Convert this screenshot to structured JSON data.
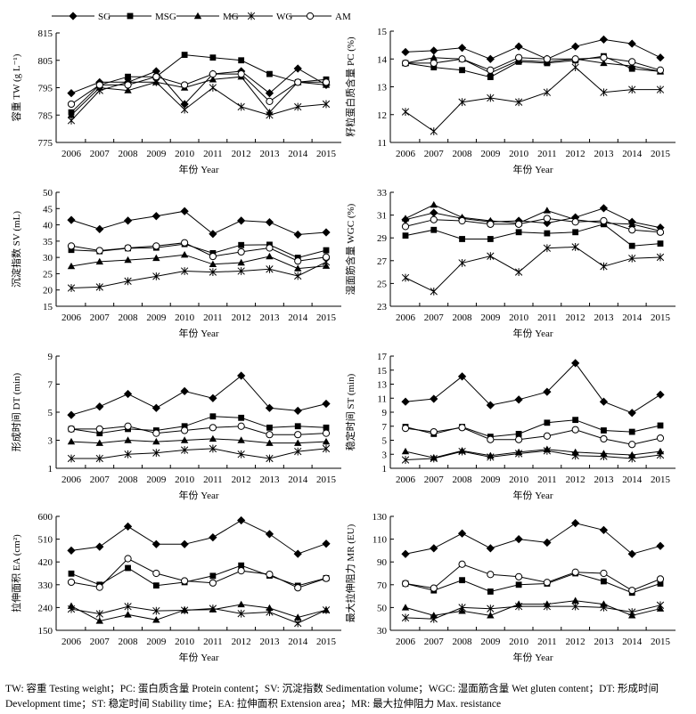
{
  "legend": [
    {
      "name": "SG",
      "marker": "diamond"
    },
    {
      "name": "MSG",
      "marker": "square"
    },
    {
      "name": "MG",
      "marker": "triangle"
    },
    {
      "name": "WG",
      "marker": "asterisk"
    },
    {
      "name": "AM",
      "marker": "circle"
    }
  ],
  "caption": "TW: 容重  Testing weight；PC: 蛋白质含量  Protein content；SV: 沉淀指数  Sedimentation volume；WGC: 湿面筋含量  Wet gluten content；DT: 形成时间  Development time；ST: 稳定时间  Stability time；EA: 拉伸面积  Extension area；MR: 最大拉伸阻力  Max. resistance",
  "chart_data": [
    {
      "type": "line",
      "id": "tw",
      "ylabel": "容重 TW (g L⁻¹)",
      "xlabel": "年份 Year",
      "ylim": [
        775,
        815
      ],
      "yticks": [
        775,
        785,
        795,
        805,
        815
      ],
      "categories": [
        "2006",
        "2007",
        "2008",
        "2009",
        "2010",
        "2011",
        "2012",
        "2013",
        "2014",
        "2015"
      ],
      "series": [
        {
          "name": "SG",
          "values": [
            793,
            797,
            797,
            801,
            789,
            800,
            801,
            793,
            802,
            796
          ]
        },
        {
          "name": "MSG",
          "values": [
            786,
            796,
            799,
            799,
            807,
            806,
            805,
            800,
            797,
            798
          ]
        },
        {
          "name": "MG",
          "values": [
            785,
            795,
            794,
            797,
            795,
            798,
            799,
            786,
            797,
            796
          ]
        },
        {
          "name": "WG",
          "values": [
            783,
            794,
            797,
            797,
            787,
            795,
            788,
            785,
            788,
            789
          ]
        },
        {
          "name": "AM",
          "values": [
            789,
            796,
            796,
            799,
            796,
            800,
            800,
            790,
            797,
            797
          ]
        }
      ]
    },
    {
      "type": "line",
      "id": "pc",
      "ylabel": "籽粒蛋白质含量 PC (%)",
      "xlabel": "年份 Year",
      "ylim": [
        11,
        15
      ],
      "yticks": [
        11,
        12,
        13,
        14,
        15
      ],
      "categories": [
        "2006",
        "2007",
        "2008",
        "2009",
        "2010",
        "2011",
        "2012",
        "2013",
        "2014",
        "2015"
      ],
      "series": [
        {
          "name": "SG",
          "values": [
            14.25,
            14.3,
            14.4,
            14.0,
            14.45,
            14.0,
            14.45,
            14.7,
            14.55,
            14.05
          ]
        },
        {
          "name": "MSG",
          "values": [
            13.85,
            13.7,
            13.6,
            13.35,
            13.9,
            13.85,
            13.95,
            14.1,
            13.65,
            13.55
          ]
        },
        {
          "name": "MG",
          "values": [
            13.85,
            14.05,
            14.0,
            13.5,
            13.95,
            13.9,
            14.0,
            13.85,
            13.75,
            13.55
          ]
        },
        {
          "name": "WG",
          "values": [
            12.1,
            11.4,
            12.45,
            12.6,
            12.45,
            12.8,
            13.7,
            12.8,
            12.9,
            12.9
          ]
        },
        {
          "name": "AM",
          "values": [
            13.85,
            13.85,
            14.0,
            13.6,
            14.05,
            14.0,
            14.0,
            14.05,
            13.9,
            13.6
          ]
        }
      ]
    },
    {
      "type": "line",
      "id": "sv",
      "ylabel": "沉淀指数 SV (mL)",
      "xlabel": "年份 Year",
      "ylim": [
        15,
        50
      ],
      "yticks": [
        15,
        20,
        25,
        30,
        35,
        40,
        45,
        50
      ],
      "categories": [
        "2006",
        "2007",
        "2008",
        "2009",
        "2010",
        "2011",
        "2012",
        "2013",
        "2014",
        "2015"
      ],
      "series": [
        {
          "name": "SG",
          "values": [
            41.5,
            38.7,
            41.3,
            42.7,
            44.2,
            37.2,
            41.3,
            40.8,
            37.0,
            37.7
          ]
        },
        {
          "name": "MSG",
          "values": [
            32.3,
            31.9,
            32.8,
            33.0,
            34.1,
            31.3,
            33.8,
            33.9,
            29.9,
            32.2
          ]
        },
        {
          "name": "MG",
          "values": [
            27.3,
            28.7,
            29.2,
            29.8,
            30.8,
            27.9,
            28.4,
            30.3,
            26.6,
            27.4
          ]
        },
        {
          "name": "WG",
          "values": [
            20.6,
            20.9,
            22.7,
            24.2,
            25.8,
            25.5,
            25.8,
            26.4,
            24.3,
            28.6
          ]
        },
        {
          "name": "AM",
          "values": [
            33.5,
            32.1,
            32.9,
            33.5,
            34.5,
            30.3,
            31.7,
            32.9,
            28.9,
            30.1
          ]
        }
      ]
    },
    {
      "type": "line",
      "id": "wgc",
      "ylabel": "湿面筋含量 WGC (%)",
      "xlabel": "年份 Year",
      "ylim": [
        23,
        33
      ],
      "yticks": [
        23,
        25,
        27,
        29,
        31,
        33
      ],
      "categories": [
        "2006",
        "2007",
        "2008",
        "2009",
        "2010",
        "2011",
        "2012",
        "2013",
        "2014",
        "2015"
      ],
      "series": [
        {
          "name": "SG",
          "values": [
            30.6,
            31.2,
            30.7,
            30.4,
            30.5,
            30.3,
            30.8,
            31.6,
            30.4,
            29.9
          ]
        },
        {
          "name": "MSG",
          "values": [
            29.2,
            29.7,
            28.9,
            28.9,
            29.5,
            29.4,
            29.5,
            30.2,
            28.3,
            28.5
          ]
        },
        {
          "name": "MG",
          "values": [
            30.7,
            31.9,
            30.8,
            30.5,
            30.3,
            31.4,
            30.6,
            30.3,
            30.2,
            29.6
          ]
        },
        {
          "name": "WG",
          "values": [
            25.5,
            24.3,
            26.8,
            27.4,
            26.0,
            28.1,
            28.2,
            26.5,
            27.2,
            27.3
          ]
        },
        {
          "name": "AM",
          "values": [
            30.0,
            30.6,
            30.5,
            30.2,
            30.2,
            30.7,
            30.4,
            30.5,
            29.7,
            29.5
          ]
        }
      ]
    },
    {
      "type": "line",
      "id": "dt",
      "ylabel": "形成时间 DT (min)",
      "xlabel": "年份 Year",
      "ylim": [
        1,
        9
      ],
      "yticks": [
        1,
        3,
        5,
        7,
        9
      ],
      "categories": [
        "2006",
        "2007",
        "2008",
        "2009",
        "2010",
        "2011",
        "2012",
        "2013",
        "2014",
        "2015"
      ],
      "series": [
        {
          "name": "SG",
          "values": [
            4.8,
            5.4,
            6.3,
            5.3,
            6.5,
            6.0,
            7.6,
            5.3,
            5.1,
            5.6
          ]
        },
        {
          "name": "MSG",
          "values": [
            3.8,
            3.5,
            3.8,
            3.7,
            4.0,
            4.7,
            4.6,
            3.9,
            4.0,
            3.9
          ]
        },
        {
          "name": "MG",
          "values": [
            2.9,
            2.8,
            3.0,
            2.9,
            3.0,
            3.1,
            3.0,
            2.8,
            2.8,
            2.9
          ]
        },
        {
          "name": "WG",
          "values": [
            1.7,
            1.7,
            2.0,
            2.1,
            2.3,
            2.4,
            2.0,
            1.7,
            2.2,
            2.4
          ]
        },
        {
          "name": "AM",
          "values": [
            3.8,
            3.8,
            4.0,
            3.5,
            3.7,
            3.9,
            4.0,
            3.4,
            3.4,
            3.5
          ]
        }
      ]
    },
    {
      "type": "line",
      "id": "st",
      "ylabel": "稳定时间 ST (min)",
      "xlabel": "年份 Year",
      "ylim": [
        1,
        17
      ],
      "yticks": [
        1,
        3,
        5,
        7,
        9,
        11,
        13,
        15,
        17
      ],
      "categories": [
        "2006",
        "2007",
        "2008",
        "2009",
        "2010",
        "2011",
        "2012",
        "2013",
        "2014",
        "2015"
      ],
      "series": [
        {
          "name": "SG",
          "values": [
            10.5,
            10.9,
            14.1,
            10.0,
            10.8,
            11.9,
            16.0,
            10.5,
            8.9,
            11.5
          ]
        },
        {
          "name": "MSG",
          "values": [
            6.9,
            5.9,
            6.9,
            5.5,
            5.9,
            7.5,
            7.9,
            6.4,
            6.2,
            7.1
          ]
        },
        {
          "name": "MG",
          "values": [
            3.4,
            2.5,
            3.5,
            2.8,
            3.3,
            3.7,
            3.3,
            3.1,
            2.9,
            3.4
          ]
        },
        {
          "name": "WG",
          "values": [
            2.2,
            2.4,
            3.4,
            2.6,
            3.1,
            3.5,
            2.8,
            2.7,
            2.4,
            2.9
          ]
        },
        {
          "name": "AM",
          "values": [
            6.7,
            6.2,
            6.8,
            5.1,
            5.1,
            5.6,
            6.5,
            5.2,
            4.4,
            5.3
          ]
        }
      ]
    },
    {
      "type": "line",
      "id": "ea",
      "ylabel": "拉伸面积 EA (cm²)",
      "xlabel": "年份 Year",
      "ylim": [
        150,
        600
      ],
      "yticks": [
        150,
        240,
        330,
        420,
        510,
        600
      ],
      "categories": [
        "2006",
        "2007",
        "2008",
        "2009",
        "2010",
        "2011",
        "2012",
        "2013",
        "2014",
        "2015"
      ],
      "series": [
        {
          "name": "SG",
          "values": [
            465,
            480,
            560,
            490,
            490,
            517,
            584,
            530,
            452,
            492
          ]
        },
        {
          "name": "MSG",
          "values": [
            374,
            330,
            396,
            327,
            340,
            365,
            406,
            366,
            326,
            356
          ]
        },
        {
          "name": "MG",
          "values": [
            246,
            187,
            212,
            191,
            230,
            232,
            252,
            238,
            201,
            230
          ]
        },
        {
          "name": "WG",
          "values": [
            234,
            215,
            244,
            227,
            229,
            236,
            216,
            222,
            178,
            230
          ]
        },
        {
          "name": "AM",
          "values": [
            340,
            320,
            433,
            375,
            345,
            337,
            385,
            371,
            318,
            355
          ]
        }
      ]
    },
    {
      "type": "line",
      "id": "mr",
      "ylabel": "最大拉伸阻力 MR (EU)",
      "xlabel": "年份 Year",
      "ylim": [
        30,
        130
      ],
      "yticks": [
        30,
        50,
        70,
        90,
        110,
        130
      ],
      "categories": [
        "2006",
        "2007",
        "2008",
        "2009",
        "2010",
        "2011",
        "2012",
        "2013",
        "2014",
        "2015"
      ],
      "series": [
        {
          "name": "SG",
          "values": [
            97,
            102,
            115,
            102,
            110,
            107,
            124,
            118,
            97,
            104
          ]
        },
        {
          "name": "MSG",
          "values": [
            71,
            65,
            74,
            64,
            70,
            71,
            80,
            73,
            63,
            71
          ]
        },
        {
          "name": "MG",
          "values": [
            50,
            43,
            47,
            43,
            53,
            53,
            56,
            53,
            43,
            49
          ]
        },
        {
          "name": "WG",
          "values": [
            41,
            40,
            50,
            49,
            51,
            51,
            51,
            50,
            46,
            52
          ]
        },
        {
          "name": "AM",
          "values": [
            71,
            67,
            88,
            79,
            77,
            72,
            81,
            80,
            65,
            75
          ]
        }
      ]
    }
  ]
}
